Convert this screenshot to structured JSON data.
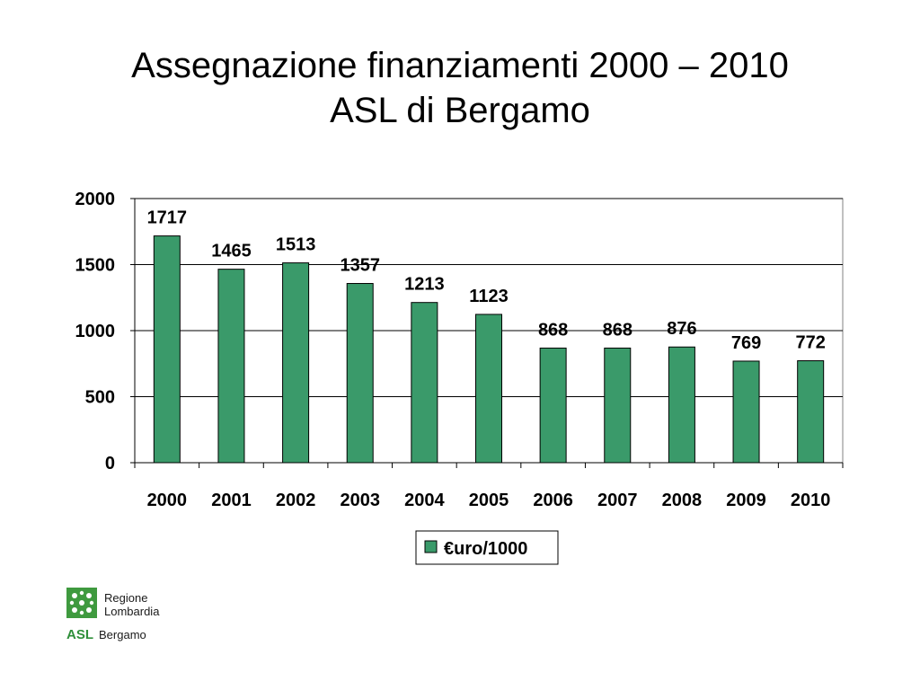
{
  "slide": {
    "title_line1": "Assegnazione finanziamenti 2000 – 2010",
    "title_line2": "ASL di Bergamo"
  },
  "logo": {
    "line1": "Regione",
    "line2": "Lombardia",
    "asl": "ASL",
    "city": "Bergamo"
  },
  "colors": {
    "bar": "#3a9a6a",
    "bar_stroke": "#000000",
    "grid": "#000000"
  },
  "chart_data": {
    "type": "bar",
    "categories": [
      "2000",
      "2001",
      "2002",
      "2003",
      "2004",
      "2005",
      "2006",
      "2007",
      "2008",
      "2009",
      "2010"
    ],
    "series": [
      {
        "name": "€uro/1000",
        "values": [
          1717,
          1465,
          1513,
          1357,
          1213,
          1123,
          868,
          868,
          876,
          769,
          772
        ]
      }
    ],
    "data_labels": [
      "1717",
      "1465",
      "1513",
      "1357",
      "1213",
      "1123",
      "868",
      "868",
      "876",
      "769",
      "772"
    ],
    "ylim": [
      0,
      2000
    ],
    "yticks": [
      0,
      500,
      1000,
      1500,
      2000
    ],
    "grid": true,
    "legend": "bottom-center",
    "xlabel": "",
    "ylabel": ""
  }
}
